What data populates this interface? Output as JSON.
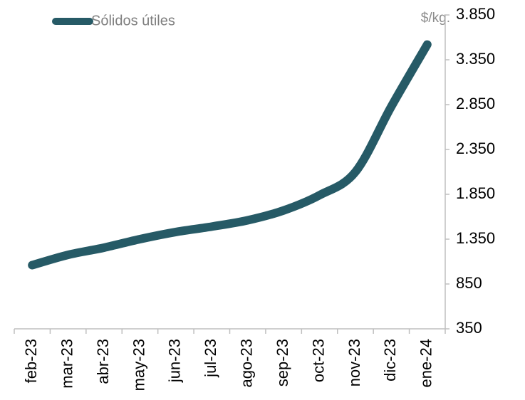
{
  "chart_data": {
    "type": "line",
    "y_label": "$/kg.",
    "categories": [
      "feb-23",
      "mar-23",
      "abr-23",
      "may-23",
      "jun-23",
      "jul-23",
      "ago-23",
      "sep-23",
      "oct-23",
      "nov-23",
      "dic-23",
      "ene-24"
    ],
    "series": [
      {
        "name": "Sólidos útiles",
        "color": "#265a66",
        "values": [
          1060,
          1175,
          1255,
          1350,
          1430,
          1490,
          1560,
          1670,
          1840,
          2100,
          2830,
          3520
        ]
      }
    ],
    "ylim": [
      350,
      3850
    ],
    "yticks": [
      350,
      850,
      {
        "value": 1350,
        "label": "1.350"
      },
      {
        "value": 1850,
        "label": "1.850"
      },
      {
        "value": 2350,
        "label": "2.350"
      },
      {
        "value": 2850,
        "label": "2.850"
      },
      {
        "value": 3350,
        "label": "3.350"
      },
      {
        "value": 3850,
        "label": "3.850"
      }
    ],
    "legend": "top-left",
    "grid": false
  }
}
